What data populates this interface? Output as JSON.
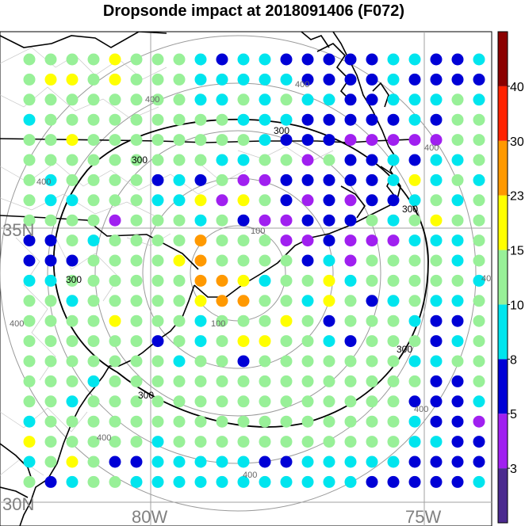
{
  "title": "Dropsonde impact at 2018091406 (F072)",
  "lat_labels": [
    "35N",
    "30N"
  ],
  "lon_labels": [
    "80W",
    "75W"
  ],
  "colorbar": {
    "bins": [
      {
        "color": "#4b2a8f"
      },
      {
        "color": "#a020f0"
      },
      {
        "color": "#0000d6"
      },
      {
        "color": "#00e5ee"
      },
      {
        "color": "#98f098"
      },
      {
        "color": "#ffff00"
      },
      {
        "color": "#ff9900"
      },
      {
        "color": "#ff2200"
      },
      {
        "color": "#8b0000"
      }
    ],
    "tick_labels": [
      "3",
      "5",
      "8",
      "10",
      "15",
      "23",
      "30",
      "40"
    ]
  },
  "range_labels": [
    "100",
    "300",
    "400"
  ],
  "contour_label": "300",
  "grid": {
    "rows": [
      "GGGGYGGGCBCCBBBBBCCBBC",
      "GYYGYGGGCCCCCBBBBCBBBB",
      "GGGGGGGGCCGCGCCBBCCCGC",
      "CGGGGGGGGGCCCBBBBBCBGG",
      "GGYGGGGGGGGCBBBPPPPPGG",
      "GGGGGGGGGCCGGPGBBCBCCG",
      "GCGGGGBCBGPPBBBBBCYCGC",
      "GCCGGGCCYPYGBPBPBBCGCG",
      "GGGGPGGGCGBPPBBBGCGYGG",
      "BBGCGGGGOGGGPPBPPPCCCG",
      "BBBGGGGYOGGGGBCPGGGGCG",
      "CCGGGGGGOOYCGGYCGGGGGC",
      "GGCGGGGGYOOGGCYGBCGCCG",
      "GGGGYGGGCGGGYGBGGGCBBG",
      "GGGGGGBGCGYYGGCBGGGBCG",
      "GGGGGGGCGGBGGGGGGGCCGG",
      "GGGCGGGGGGGGGGGGGGGBBG",
      "GGCGGGGGGGGGGGGGGGBBBC",
      "CGGGGGGGGGGGGGGGGGCBBP",
      "YGGGGGCGGGGGGGGGGGCCBB",
      "CGYGBBCCCCCBBCCCCCBBBB",
      "GBCGGCCCCCCCCCCCBBBBBC"
    ]
  }
}
